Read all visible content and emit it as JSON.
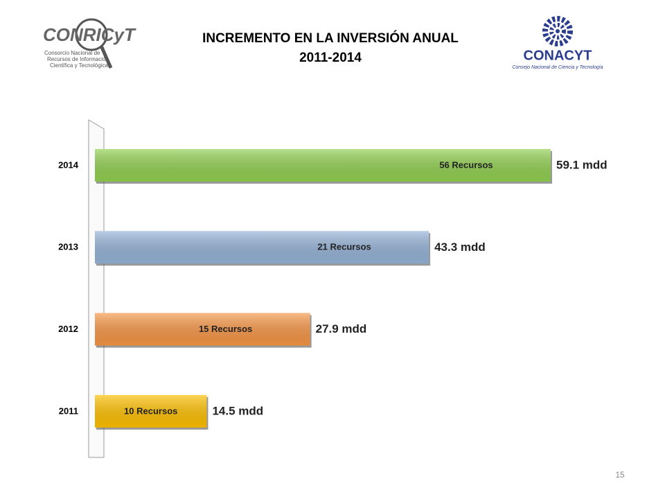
{
  "chart_data": {
    "type": "barh",
    "title": "INCREMENTO EN LA INVERSIÓN ANUAL",
    "subtitle": "2011-2014",
    "categories": [
      "2014",
      "2013",
      "2012",
      "2011"
    ],
    "values": [
      59.1,
      43.3,
      27.9,
      14.5
    ],
    "value_labels": [
      "59.1 mdd",
      "43.3 mdd",
      "27.9 mdd",
      "14.5 mdd"
    ],
    "annotations": [
      "56 Recursos",
      "21 Recursos",
      "15 Recursos",
      "10 Recursos"
    ],
    "colors": [
      "#92d050",
      "#95b3d7",
      "#f79646",
      "#ffc000"
    ]
  },
  "logos": {
    "left_name": "CONRICyT",
    "left_caption": [
      "Consorcio Nacional de",
      "Recursos de Información",
      "Científica y Tecnológica"
    ],
    "right_name": "CONACYT",
    "right_caption": "Consejo Nacional de Ciencia y Tecnología"
  },
  "page_number": "15"
}
